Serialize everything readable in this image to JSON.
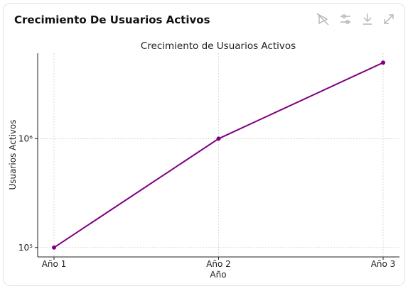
{
  "header": {
    "title": "Crecimiento De Usuarios Activos"
  },
  "chart_data": {
    "type": "line",
    "title": "Crecimiento de Usuarios Activos",
    "x_label": "Año",
    "y_label": "Usuarios Activos",
    "categories": [
      "Año 1",
      "Año 2",
      "Año 3"
    ],
    "series": [
      {
        "name": "Usuarios Activos",
        "color": "#800080",
        "values": [
          100000,
          1000000,
          5000000
        ]
      }
    ],
    "ylim": [
      82000,
      6100000
    ],
    "y_scale": "log",
    "yticks": [
      {
        "value": 100000,
        "label": "10⁵"
      },
      {
        "value": 1000000,
        "label": "10⁶"
      }
    ],
    "grid": true
  }
}
